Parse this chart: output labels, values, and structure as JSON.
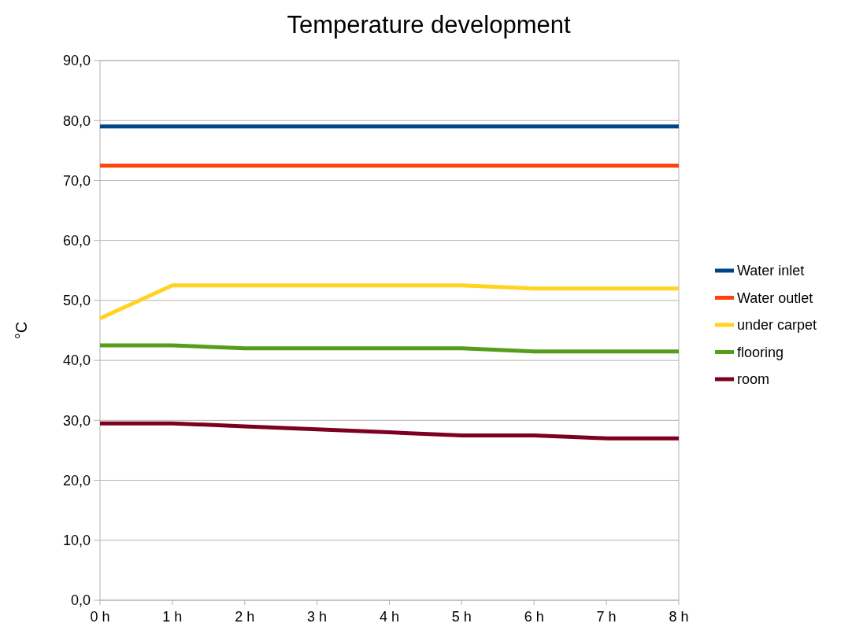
{
  "chart_data": {
    "type": "line",
    "title": "Temperature development",
    "ylabel": "°C",
    "categories": [
      "0 h",
      "1 h",
      "2 h",
      "3 h",
      "4 h",
      "5 h",
      "6 h",
      "7 h",
      "8 h"
    ],
    "series": [
      {
        "name": "Water inlet",
        "color": "#004586",
        "values": [
          79,
          79,
          79,
          79,
          79,
          79,
          79,
          79,
          79
        ]
      },
      {
        "name": "Water outlet",
        "color": "#ff420e",
        "values": [
          72.5,
          72.5,
          72.5,
          72.5,
          72.5,
          72.5,
          72.5,
          72.5,
          72.5
        ]
      },
      {
        "name": "under carpet",
        "color": "#ffd320",
        "values": [
          47,
          52.5,
          52.5,
          52.5,
          52.5,
          52.5,
          52,
          52,
          52
        ]
      },
      {
        "name": "flooring",
        "color": "#579d1c",
        "values": [
          42.5,
          42.5,
          42,
          42,
          42,
          42,
          41.5,
          41.5,
          41.5
        ]
      },
      {
        "name": "room",
        "color": "#7e0021",
        "values": [
          29.5,
          29.5,
          29,
          28.5,
          28,
          27.5,
          27.5,
          27,
          27
        ]
      }
    ],
    "ylim": [
      0,
      90
    ],
    "yticks": [
      {
        "value": 0,
        "label": "0,0"
      },
      {
        "value": 10,
        "label": "10,0"
      },
      {
        "value": 20,
        "label": "20,0"
      },
      {
        "value": 30,
        "label": "30,0"
      },
      {
        "value": 40,
        "label": "40,0"
      },
      {
        "value": 50,
        "label": "50,0"
      },
      {
        "value": 60,
        "label": "60,0"
      },
      {
        "value": 70,
        "label": "70,0"
      },
      {
        "value": 80,
        "label": "80,0"
      },
      {
        "value": 90,
        "label": "90,0"
      }
    ],
    "grid": "y",
    "legend": "right",
    "marker": "none",
    "line_style": "solid"
  }
}
